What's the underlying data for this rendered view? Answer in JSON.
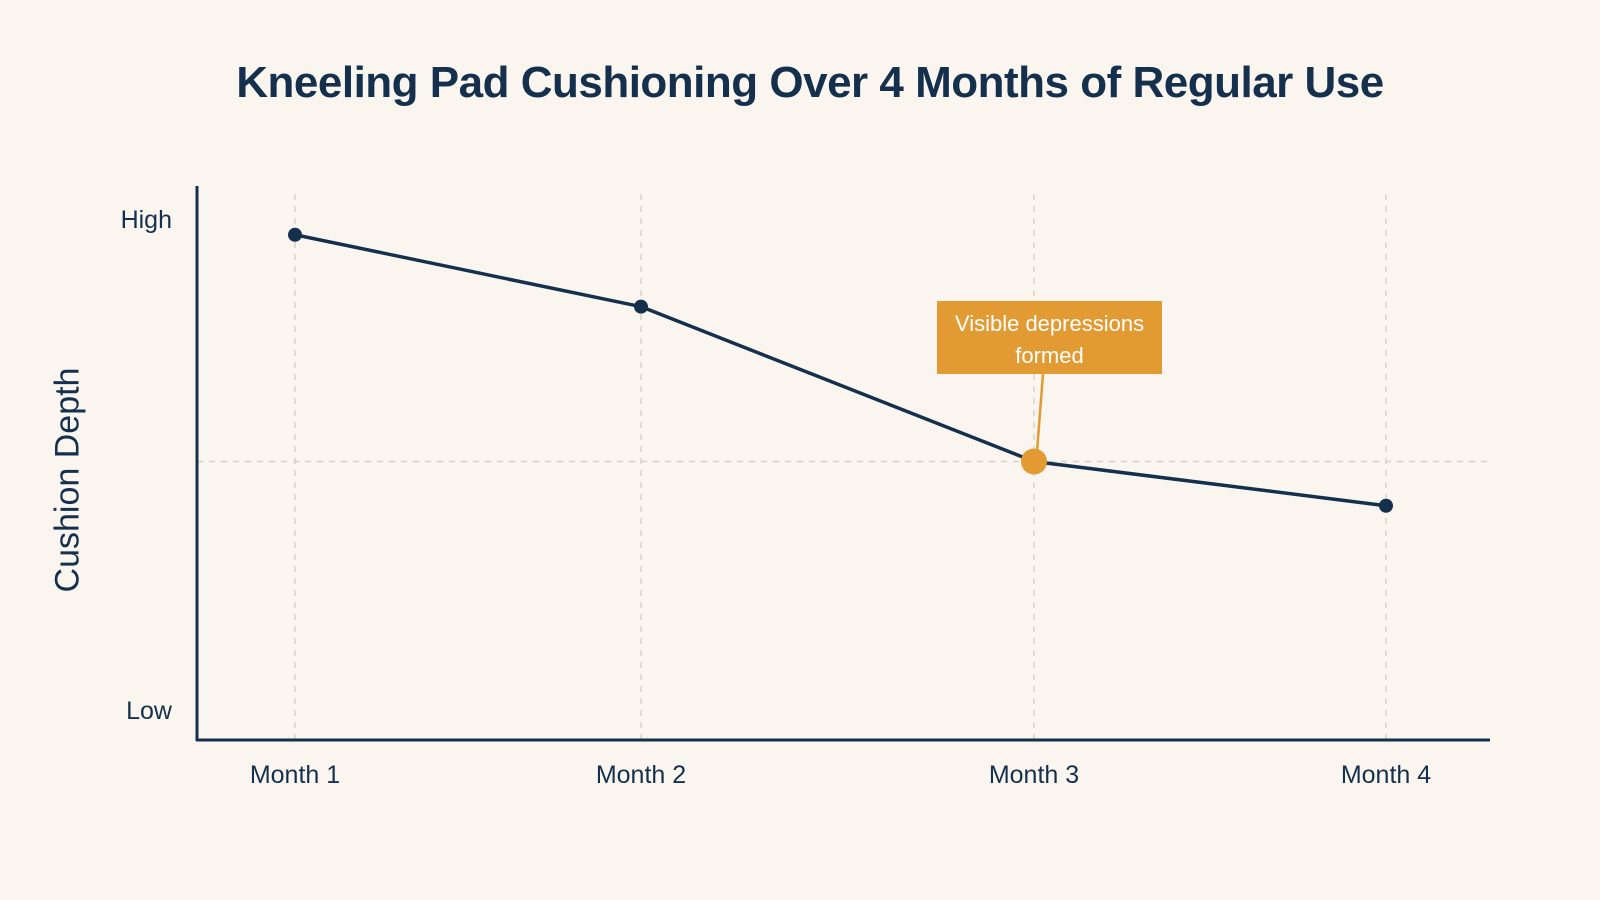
{
  "chart_data": {
    "type": "line",
    "title": "Kneeling Pad Cushioning Over 4 Months of Regular Use",
    "xlabel": "",
    "ylabel": "Cushion Depth",
    "categories": [
      "Month 1",
      "Month 2",
      "Month 3",
      "Month 4"
    ],
    "y_tick_labels": [
      "High",
      "Low"
    ],
    "ylim": [
      0,
      100
    ],
    "series": [
      {
        "values": [
          91,
          78,
          50,
          42
        ]
      }
    ],
    "annotations": [
      {
        "category": "Month 3",
        "text_lines": [
          "Visible depressions",
          "formed"
        ]
      }
    ],
    "grid": true,
    "reference_line": {
      "y": 50,
      "style": "dashed"
    },
    "colors": {
      "line": "#15304d",
      "highlight": "#e29a33",
      "grid": "#d9d2c6",
      "background": "#faf6ef"
    }
  }
}
